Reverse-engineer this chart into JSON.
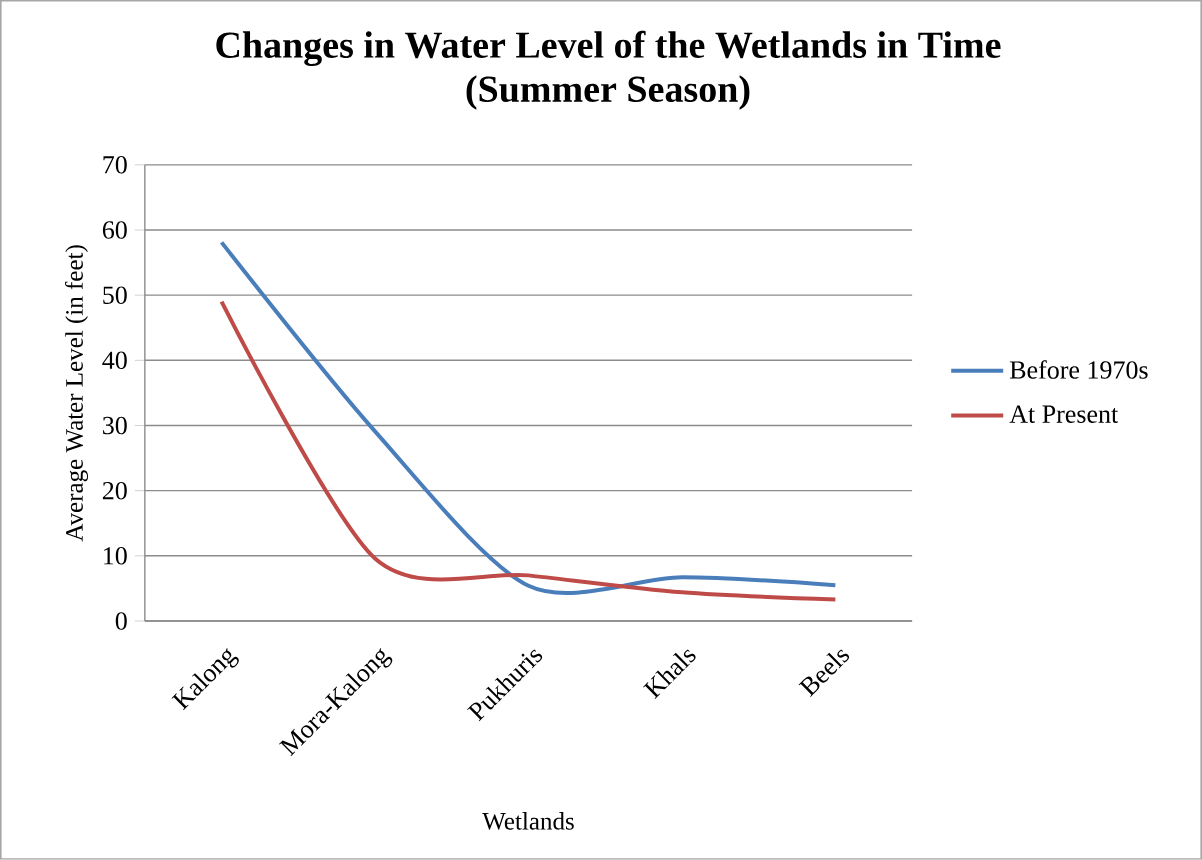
{
  "chart_data": {
    "type": "line",
    "title": "Changes in Water Level of the Wetlands in Time\n(Summer Season)",
    "xlabel": "Wetlands",
    "ylabel": "Average Water Level (in feet)",
    "categories": [
      "Kalong",
      "Mora-Kalong",
      "Pukhuris",
      "Khals",
      "Beels"
    ],
    "series": [
      {
        "name": "Before 1970s",
        "color": "#4a7ebb",
        "values": [
          58.1,
          29.1,
          5.4,
          6.7,
          5.5
        ]
      },
      {
        "name": "At Present",
        "color": "#be4b48",
        "values": [
          49.0,
          9.6,
          7.0,
          4.4,
          3.3
        ]
      }
    ],
    "ylim": [
      0,
      70
    ],
    "yticks": [
      0,
      10,
      20,
      30,
      40,
      50,
      60,
      70
    ],
    "grid": "y",
    "legend": "right",
    "marker": "none",
    "line_style": "solid"
  }
}
